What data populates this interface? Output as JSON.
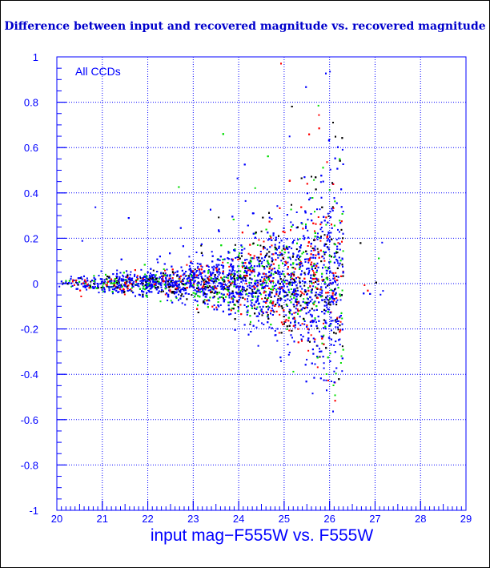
{
  "colors": {
    "axis": "#0000ff",
    "title": "#0000cc",
    "series": [
      "#000000",
      "#ff0000",
      "#00dd00",
      "#0000ff"
    ],
    "background": "#ffffff"
  },
  "chart_data": {
    "type": "scatter",
    "title": "Difference between input and recovered magnitude vs. recovered magnitude",
    "xlabel": "input mag−F555W vs. F555W",
    "ylabel": "",
    "annotation": "All CCDs",
    "xlim": [
      20,
      29
    ],
    "ylim": [
      -1,
      1
    ],
    "grid": true,
    "grid_style": "dotted",
    "xticks": [
      "20",
      "21",
      "22",
      "23",
      "24",
      "25",
      "26",
      "27",
      "28",
      "29"
    ],
    "yticks": [
      "-1",
      "-0.8",
      "-0.6",
      "-0.4",
      "-0.2",
      "0",
      "0.2",
      "0.4",
      "0.6",
      "0.8",
      "1"
    ],
    "series_colors": [
      "#000000",
      "#ff0000",
      "#00dd00",
      "#0000ff"
    ],
    "distribution": {
      "center_y": 0,
      "scatter_at_x": [
        {
          "x": 20.0,
          "sigma": 0.012
        },
        {
          "x": 21.0,
          "sigma": 0.02
        },
        {
          "x": 22.0,
          "sigma": 0.03
        },
        {
          "x": 23.0,
          "sigma": 0.045
        },
        {
          "x": 24.0,
          "sigma": 0.07
        },
        {
          "x": 25.0,
          "sigma": 0.12
        },
        {
          "x": 25.5,
          "sigma": 0.16
        },
        {
          "x": 26.0,
          "sigma": 0.2
        },
        {
          "x": 26.3,
          "sigma": 0.25
        }
      ],
      "dense_cutoff_x": 26.3,
      "positive_tail_to": 1.0,
      "negative_tail_to": -0.6
    }
  }
}
